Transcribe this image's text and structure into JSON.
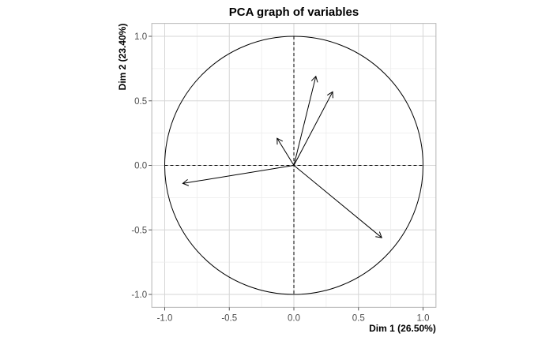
{
  "chart_data": {
    "type": "scatter",
    "title": "PCA graph of variables",
    "xlabel": "Dim 1 (26.50%)",
    "ylabel": "Dim 2 (23.40%)",
    "xlim": [
      -1.0,
      1.0
    ],
    "ylim": [
      -1.0,
      1.0
    ],
    "xticks": [
      -1.0,
      -0.5,
      0.0,
      0.5,
      1.0
    ],
    "yticks": [
      -1.0,
      -0.5,
      0.0,
      0.5,
      1.0
    ],
    "xtick_labels": [
      "-1.0",
      "-0.5",
      "0.0",
      "0.5",
      "1.0"
    ],
    "ytick_labels": [
      "-1.0",
      "-0.5",
      "0.0",
      "0.5",
      "1.0"
    ],
    "grid": true,
    "correlation_circle": true,
    "reference_lines": {
      "x": 0.0,
      "y": 0.0,
      "style": "dashed"
    },
    "vectors": [
      {
        "x": 0.17,
        "y": 0.69
      },
      {
        "x": 0.3,
        "y": 0.57
      },
      {
        "x": -0.13,
        "y": 0.21
      },
      {
        "x": -0.86,
        "y": -0.14
      },
      {
        "x": 0.68,
        "y": -0.56
      }
    ],
    "colors": {
      "line": "#000000",
      "grid": "#d6d6d6",
      "background": "#ffffff"
    }
  }
}
